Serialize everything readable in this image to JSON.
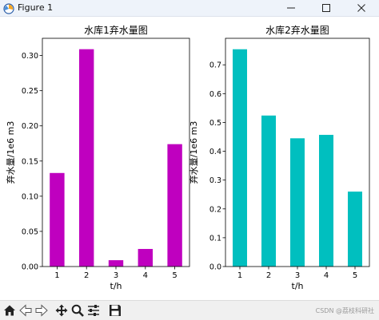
{
  "window": {
    "title": "Figure 1"
  },
  "watermark": "CSDN @荔枝科研社",
  "chart_data": [
    {
      "type": "bar",
      "title": "水库1弃水量图",
      "xlabel": "t/h",
      "ylabel": "弃水量/1e6 m3",
      "categories": [
        "1",
        "2",
        "3",
        "4",
        "5"
      ],
      "values": [
        0.133,
        0.309,
        0.009,
        0.025,
        0.174
      ],
      "ylim": [
        0,
        0.3245
      ],
      "yticks": [
        0.0,
        0.05,
        0.1,
        0.15,
        0.2,
        0.25,
        0.3
      ],
      "ytick_decimals": 2,
      "color": "#bf00bf",
      "grid": false
    },
    {
      "type": "bar",
      "title": "水库2弃水量图",
      "xlabel": "t/h",
      "ylabel": "弃水量/1e6 m3",
      "categories": [
        "1",
        "2",
        "3",
        "4",
        "5"
      ],
      "values": [
        0.754,
        0.524,
        0.445,
        0.457,
        0.26
      ],
      "ylim": [
        0,
        0.792
      ],
      "yticks": [
        0.0,
        0.1,
        0.2,
        0.3,
        0.4,
        0.5,
        0.6,
        0.7
      ],
      "ytick_decimals": 1,
      "color": "#00bfbf",
      "grid": false
    }
  ]
}
